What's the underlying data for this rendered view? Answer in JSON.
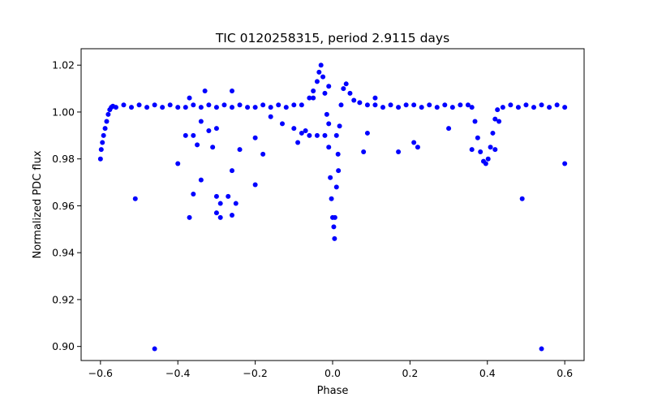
{
  "chart_data": {
    "type": "scatter",
    "title": "TIC 0120258315, period 2.9115 days",
    "xlabel": "Phase",
    "ylabel": "Normalized PDC flux",
    "xlim": [
      -0.65,
      0.65
    ],
    "ylim": [
      0.894,
      1.027
    ],
    "xticks": [
      -0.6,
      -0.4,
      -0.2,
      0.0,
      0.2,
      0.4,
      0.6
    ],
    "xtick_labels": [
      "−0.6",
      "−0.4",
      "−0.2",
      "0.0",
      "0.2",
      "0.4",
      "0.6"
    ],
    "yticks": [
      0.9,
      0.92,
      0.94,
      0.96,
      0.98,
      1.0,
      1.02
    ],
    "ytick_labels": [
      "0.90",
      "0.92",
      "0.94",
      "0.96",
      "0.98",
      "1.00",
      "1.02"
    ],
    "grid": false,
    "marker_color": "#0000ff",
    "series": [
      {
        "points": [
          [
            -0.6,
            0.98
          ],
          [
            -0.598,
            0.984
          ],
          [
            -0.595,
            0.987
          ],
          [
            -0.592,
            0.99
          ],
          [
            -0.588,
            0.993
          ],
          [
            -0.584,
            0.996
          ],
          [
            -0.58,
            0.999
          ],
          [
            -0.576,
            1.001
          ],
          [
            -0.572,
            1.002
          ],
          [
            -0.568,
            1.0025
          ],
          [
            -0.56,
            1.002
          ],
          [
            -0.54,
            1.003
          ],
          [
            -0.52,
            1.002
          ],
          [
            -0.5,
            1.003
          ],
          [
            -0.48,
            1.002
          ],
          [
            -0.46,
            1.003
          ],
          [
            -0.44,
            1.002
          ],
          [
            -0.42,
            1.003
          ],
          [
            -0.4,
            1.002
          ],
          [
            -0.38,
            1.002
          ],
          [
            -0.36,
            1.003
          ],
          [
            -0.34,
            1.002
          ],
          [
            -0.32,
            1.003
          ],
          [
            -0.3,
            1.002
          ],
          [
            -0.28,
            1.003
          ],
          [
            -0.26,
            1.002
          ],
          [
            -0.24,
            1.003
          ],
          [
            -0.22,
            1.002
          ],
          [
            -0.2,
            1.002
          ],
          [
            -0.18,
            1.003
          ],
          [
            -0.16,
            1.002
          ],
          [
            -0.14,
            1.003
          ],
          [
            -0.12,
            1.002
          ],
          [
            -0.1,
            1.003
          ],
          [
            -0.08,
            1.003
          ],
          [
            -0.06,
            1.006
          ],
          [
            -0.05,
            1.009
          ],
          [
            -0.04,
            1.013
          ],
          [
            -0.035,
            1.017
          ],
          [
            -0.03,
            1.02
          ],
          [
            -0.025,
            1.015
          ],
          [
            -0.02,
            1.008
          ],
          [
            -0.015,
            0.999
          ],
          [
            -0.01,
            0.985
          ],
          [
            -0.006,
            0.972
          ],
          [
            -0.003,
            0.963
          ],
          [
            0.0,
            0.955
          ],
          [
            0.003,
            0.951
          ],
          [
            0.006,
            0.955
          ],
          [
            0.01,
            0.968
          ],
          [
            0.014,
            0.982
          ],
          [
            0.018,
            0.994
          ],
          [
            0.022,
            1.003
          ],
          [
            0.028,
            1.01
          ],
          [
            0.035,
            1.012
          ],
          [
            0.045,
            1.008
          ],
          [
            0.055,
            1.005
          ],
          [
            0.07,
            1.004
          ],
          [
            0.09,
            1.003
          ],
          [
            0.11,
            1.003
          ],
          [
            0.13,
            1.002
          ],
          [
            0.15,
            1.003
          ],
          [
            0.17,
            1.002
          ],
          [
            0.19,
            1.003
          ],
          [
            0.21,
            1.003
          ],
          [
            0.23,
            1.002
          ],
          [
            0.25,
            1.003
          ],
          [
            0.27,
            1.002
          ],
          [
            0.29,
            1.003
          ],
          [
            0.31,
            1.002
          ],
          [
            0.33,
            1.003
          ],
          [
            0.35,
            1.003
          ],
          [
            0.36,
            1.002
          ],
          [
            0.368,
            0.996
          ],
          [
            0.375,
            0.989
          ],
          [
            0.382,
            0.983
          ],
          [
            0.39,
            0.979
          ],
          [
            0.396,
            0.978
          ],
          [
            0.402,
            0.98
          ],
          [
            0.408,
            0.985
          ],
          [
            0.414,
            0.991
          ],
          [
            0.42,
            0.997
          ],
          [
            0.426,
            1.001
          ],
          [
            0.44,
            1.002
          ],
          [
            0.46,
            1.003
          ],
          [
            0.48,
            1.002
          ],
          [
            0.5,
            1.003
          ],
          [
            0.52,
            1.002
          ],
          [
            0.54,
            1.003
          ],
          [
            0.56,
            1.002
          ],
          [
            0.58,
            1.003
          ],
          [
            0.6,
            1.002
          ],
          [
            -0.1,
            0.993
          ],
          [
            -0.08,
            0.991
          ],
          [
            -0.06,
            0.99
          ],
          [
            -0.04,
            0.99
          ],
          [
            -0.02,
            0.99
          ],
          [
            -0.13,
            0.995
          ],
          [
            -0.16,
            0.998
          ],
          [
            -0.01,
            0.995
          ],
          [
            0.01,
            0.99
          ],
          [
            0.015,
            0.975
          ],
          [
            -0.3,
            0.964
          ],
          [
            -0.29,
            0.961
          ],
          [
            -0.3,
            0.957
          ],
          [
            -0.34,
            0.971
          ],
          [
            -0.31,
            0.985
          ],
          [
            -0.32,
            0.992
          ],
          [
            -0.35,
            0.986
          ],
          [
            -0.36,
            0.99
          ],
          [
            -0.38,
            0.99
          ],
          [
            -0.4,
            0.978
          ],
          [
            -0.27,
            0.964
          ],
          [
            -0.25,
            0.961
          ],
          [
            -0.26,
            0.956
          ],
          [
            -0.29,
            0.955
          ],
          [
            -0.36,
            0.965
          ],
          [
            -0.37,
            0.955
          ],
          [
            -0.26,
            0.975
          ],
          [
            -0.2,
            0.969
          ],
          [
            -0.51,
            0.963
          ],
          [
            -0.46,
            0.899
          ],
          [
            0.54,
            0.899
          ],
          [
            0.49,
            0.963
          ],
          [
            0.6,
            0.978
          ],
          [
            -0.34,
            0.996
          ],
          [
            -0.3,
            0.993
          ],
          [
            -0.24,
            0.984
          ],
          [
            -0.18,
            0.982
          ],
          [
            -0.2,
            0.989
          ],
          [
            -0.09,
            0.987
          ],
          [
            -0.07,
            0.992
          ],
          [
            0.005,
            0.946
          ],
          [
            0.08,
            0.983
          ],
          [
            0.09,
            0.991
          ],
          [
            0.17,
            0.983
          ],
          [
            0.21,
            0.987
          ],
          [
            0.22,
            0.985
          ],
          [
            0.3,
            0.993
          ],
          [
            0.43,
            0.996
          ],
          [
            0.36,
            0.984
          ],
          [
            0.42,
            0.984
          ],
          [
            -0.33,
            1.009
          ],
          [
            -0.26,
            1.009
          ],
          [
            -0.37,
            1.006
          ],
          [
            0.11,
            1.006
          ],
          [
            -0.05,
            1.006
          ],
          [
            -0.01,
            1.011
          ]
        ]
      }
    ]
  }
}
